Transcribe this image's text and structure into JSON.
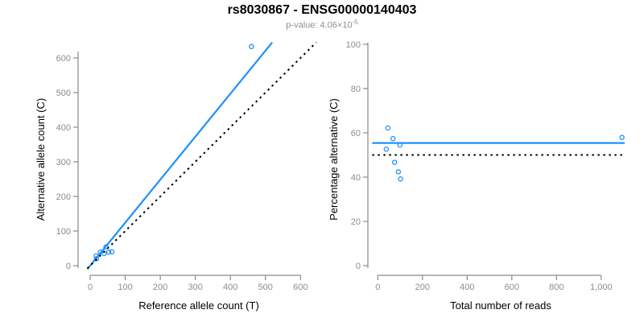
{
  "header": {
    "title": "rs8030867 - ENSG00000140403",
    "pvalue_label": "p-value: 4.06×10",
    "pvalue_exponent": "-5"
  },
  "colors": {
    "accent_blue": "#1E90FF",
    "axis_gray": "#8a8a8a",
    "tick_text_gray": "#8c8c8c",
    "label_black": "#000000",
    "subtitle_gray": "#8f8f8f"
  },
  "chart_data": [
    {
      "type": "scatter",
      "xlabel": "Reference allele count (T)",
      "ylabel": "Alternative allele count (C)",
      "xlim": [
        0,
        620
      ],
      "ylim": [
        0,
        645
      ],
      "xticks": [
        0,
        100,
        200,
        300,
        400,
        500,
        600
      ],
      "xtick_labels": [
        "0",
        "100",
        "200",
        "300",
        "400",
        "500",
        "600"
      ],
      "yticks": [
        0,
        100,
        200,
        300,
        400,
        500,
        600
      ],
      "ytick_labels": [
        "0",
        "100",
        "200",
        "300",
        "400",
        "500",
        "600"
      ],
      "grid": false,
      "marker": "open-circle",
      "points": [
        [
          17,
          28
        ],
        [
          18,
          20
        ],
        [
          29,
          39
        ],
        [
          40,
          35
        ],
        [
          45,
          54
        ],
        [
          53,
          39
        ],
        [
          62,
          40
        ],
        [
          460,
          633
        ]
      ],
      "lines": [
        {
          "slope": 1.242,
          "intercept": 0,
          "style": "solid",
          "color": "#1E90FF"
        },
        {
          "slope": 1,
          "intercept": 0,
          "style": "dotted",
          "color": "#000000"
        }
      ]
    },
    {
      "type": "scatter",
      "xlabel": "Total number of reads",
      "ylabel": "Percentage alternative (C)",
      "xlim": [
        0,
        1130
      ],
      "ylim": [
        0,
        100
      ],
      "xticks": [
        0,
        200,
        400,
        600,
        800,
        1000
      ],
      "xtick_labels": [
        "0",
        "200",
        "400",
        "600",
        "800",
        "1,000"
      ],
      "yticks": [
        0,
        20,
        40,
        60,
        80,
        100
      ],
      "ytick_labels": [
        "0",
        "20",
        "40",
        "60",
        "80",
        "100"
      ],
      "grid": false,
      "marker": "open-circle",
      "points": [
        [
          45,
          62.2
        ],
        [
          38,
          52.6
        ],
        [
          68,
          57.4
        ],
        [
          75,
          46.7
        ],
        [
          99,
          54.5
        ],
        [
          92,
          42.4
        ],
        [
          102,
          39.2
        ],
        [
          1093,
          57.9
        ]
      ],
      "lines": [
        {
          "slope": 0,
          "intercept": 55.4,
          "style": "solid",
          "color": "#1E90FF"
        },
        {
          "slope": 0,
          "intercept": 50,
          "style": "dotted",
          "color": "#000000"
        }
      ]
    }
  ]
}
